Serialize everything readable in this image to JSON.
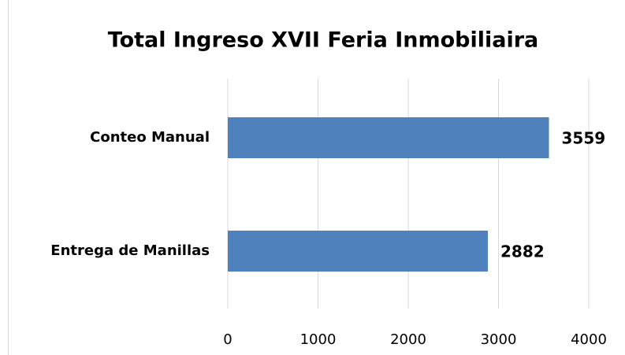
{
  "chart_data": {
    "type": "hbar",
    "title": "Total Ingreso XVII Feria Inmobiliaira",
    "categories": [
      "Conteo Manual",
      "Entrega de Manillas"
    ],
    "values": [
      3559,
      2882
    ],
    "color": "#4f81bd",
    "xlim": [
      0,
      4000
    ],
    "xticks": [
      0,
      1000,
      2000,
      3000,
      4000
    ],
    "grid": true
  }
}
